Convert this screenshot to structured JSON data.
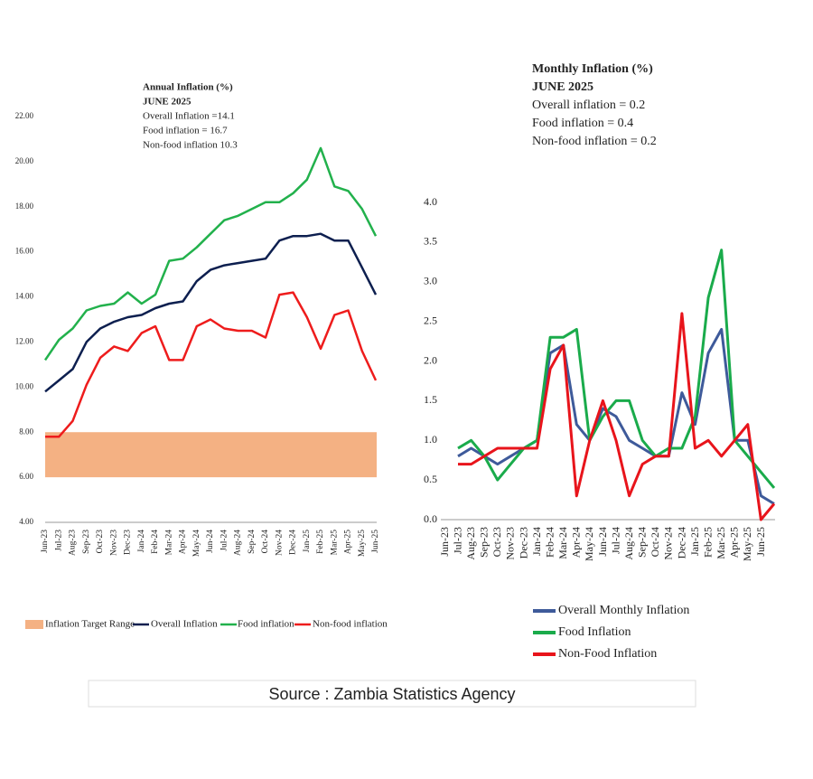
{
  "chart_data": [
    {
      "type": "line",
      "title": "Annual Inflation (%)",
      "subtitle": "JUNE 2025",
      "annotations": [
        "Overall Inflation =14.1",
        "Food inflation = 16.7",
        "Non-food inflation 10.3"
      ],
      "categories": [
        "Jun-23",
        "Jul-23",
        "Aug-23",
        "Sep-23",
        "Oct-23",
        "Nov-23",
        "Dec-23",
        "Jan-24",
        "Feb-24",
        "Mar-24",
        "Apr-24",
        "May-24",
        "Jun-24",
        "Jul-24",
        "Aug-24",
        "Sep-24",
        "Oct-24",
        "Nov-24",
        "Dec-24",
        "Jan-25",
        "Feb-25",
        "Mar-25",
        "Apr-25",
        "May-25",
        "Jun-25"
      ],
      "target_band": {
        "name": "Inflation Target Range",
        "color": "#f4b183",
        "range": [
          6,
          8
        ]
      },
      "series": [
        {
          "name": "Overall Inflation",
          "color": "#0d1f4f",
          "values": [
            9.8,
            10.3,
            10.8,
            12.0,
            12.6,
            12.9,
            13.1,
            13.2,
            13.5,
            13.7,
            13.8,
            14.7,
            15.2,
            15.4,
            15.5,
            15.6,
            15.7,
            16.5,
            16.7,
            16.7,
            16.8,
            16.5,
            16.5,
            15.3,
            14.1
          ]
        },
        {
          "name": "Food inflation",
          "color": "#22b14c",
          "values": [
            11.2,
            12.1,
            12.6,
            13.4,
            13.6,
            13.7,
            14.2,
            13.7,
            14.1,
            15.6,
            15.7,
            16.2,
            16.8,
            17.4,
            17.6,
            17.9,
            18.2,
            18.2,
            18.6,
            19.2,
            20.6,
            18.9,
            18.7,
            17.9,
            16.7
          ]
        },
        {
          "name": "Non-food inflation",
          "color": "#ee1c1c",
          "values": [
            7.8,
            7.8,
            8.5,
            10.1,
            11.3,
            11.8,
            11.6,
            12.4,
            12.7,
            11.2,
            11.2,
            12.7,
            13.0,
            12.6,
            12.5,
            12.5,
            12.2,
            14.1,
            14.2,
            13.1,
            11.7,
            13.2,
            13.4,
            11.6,
            10.3
          ]
        }
      ],
      "ylim": [
        4,
        22
      ],
      "yticks": [
        {
          "value": 4,
          "label": "4.00"
        },
        {
          "value": 6,
          "label": "6.00"
        },
        {
          "value": 8,
          "label": "8.00"
        },
        {
          "value": 10,
          "label": "10.00"
        },
        {
          "value": 12,
          "label": "12.00"
        },
        {
          "value": 14,
          "label": "14.00"
        },
        {
          "value": 16,
          "label": "16.00"
        },
        {
          "value": 18,
          "label": "18.00"
        },
        {
          "value": 20,
          "label": "20.00"
        },
        {
          "value": 22,
          "label": "22.00"
        }
      ],
      "legend": "bottom"
    },
    {
      "type": "line",
      "title": "Monthly Inflation (%)",
      "subtitle": "JUNE 2025",
      "annotations": [
        "Overall inflation = 0.2",
        "Food inflation = 0.4",
        "Non-food inflation = 0.2"
      ],
      "categories": [
        "Jun-23",
        "Jul-23",
        "Aug-23",
        "Sep-23",
        "Oct-23",
        "Nov-23",
        "Dec-23",
        "Jan-24",
        "Feb-24",
        "Mar-24",
        "Apr-24",
        "May-24",
        "Jun-24",
        "Jul-24",
        "Aug-24",
        "Sep-24",
        "Oct-24",
        "Nov-24",
        "Dec-24",
        "Jan-25",
        "Feb-25",
        "Mar-25",
        "Apr-25",
        "May-25",
        "Jun-25"
      ],
      "series": [
        {
          "name": "Overall Monthly Inflation",
          "color": "#3e5a9a",
          "values": [
            0.8,
            0.9,
            0.8,
            0.7,
            0.8,
            0.9,
            1.0,
            2.1,
            2.2,
            1.2,
            1.0,
            1.4,
            1.3,
            1.0,
            0.9,
            0.8,
            0.8,
            1.6,
            1.2,
            2.1,
            2.4,
            1.0,
            1.0,
            0.3,
            0.2
          ]
        },
        {
          "name": "Food Inflation",
          "color": "#1aab4b",
          "values": [
            0.9,
            1.0,
            0.8,
            0.5,
            0.7,
            0.9,
            1.0,
            2.3,
            2.3,
            2.4,
            1.0,
            1.3,
            1.5,
            1.5,
            1.0,
            0.8,
            0.9,
            0.9,
            1.3,
            2.8,
            3.4,
            1.0,
            0.8,
            0.6,
            0.4
          ]
        },
        {
          "name": "Non-Food Inflation",
          "color": "#e8141b",
          "values": [
            0.7,
            0.7,
            0.8,
            0.9,
            0.9,
            0.9,
            0.9,
            1.9,
            2.2,
            0.3,
            1.0,
            1.5,
            1.0,
            0.3,
            0.7,
            0.8,
            0.8,
            2.6,
            0.9,
            1.0,
            0.8,
            1.0,
            1.2,
            0.0,
            0.2
          ]
        }
      ],
      "ylim": [
        0,
        4
      ],
      "yticks": [
        {
          "value": 0,
          "label": "0.0"
        },
        0.5,
        {
          "value": 1,
          "label": "1.0"
        },
        1.5,
        {
          "value": 2,
          "label": "2.0"
        },
        2.5,
        {
          "value": 3,
          "label": "3.0"
        },
        3.5,
        {
          "value": 4,
          "label": "4.0"
        }
      ],
      "legend": "bottom"
    }
  ],
  "source": "Source : Zambia Statistics Agency"
}
